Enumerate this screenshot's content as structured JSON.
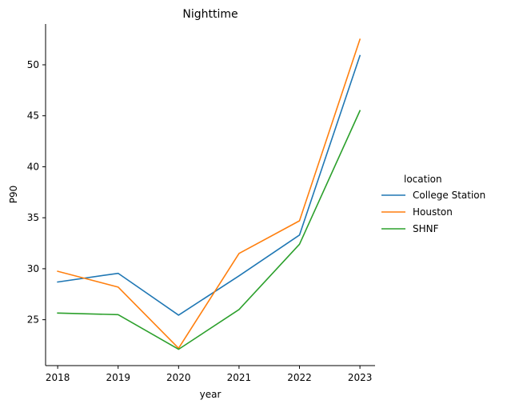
{
  "chart_data": {
    "type": "line",
    "title": "Nighttime",
    "xlabel": "year",
    "ylabel": "P90",
    "x": [
      2018,
      2019,
      2020,
      2021,
      2022,
      2023
    ],
    "x_ticks": [
      "2018",
      "2019",
      "2020",
      "2021",
      "2022",
      "2023"
    ],
    "y_ticks": [
      25,
      30,
      35,
      40,
      45,
      50
    ],
    "ylim": [
      20.5,
      54.0
    ],
    "xlim": [
      2017.8,
      2023.25
    ],
    "grid": false,
    "legend": {
      "title": "location",
      "placement": "right"
    },
    "series": [
      {
        "name": "College Station",
        "color": "#1f77b4",
        "values": [
          28.7,
          29.55,
          25.45,
          29.3,
          33.3,
          50.9
        ]
      },
      {
        "name": "Houston",
        "color": "#ff7f0e",
        "values": [
          29.75,
          28.2,
          22.2,
          31.5,
          34.7,
          52.5
        ]
      },
      {
        "name": "SHNF",
        "color": "#2ca02c",
        "values": [
          25.65,
          25.5,
          22.1,
          26.0,
          32.4,
          45.5
        ]
      }
    ]
  }
}
